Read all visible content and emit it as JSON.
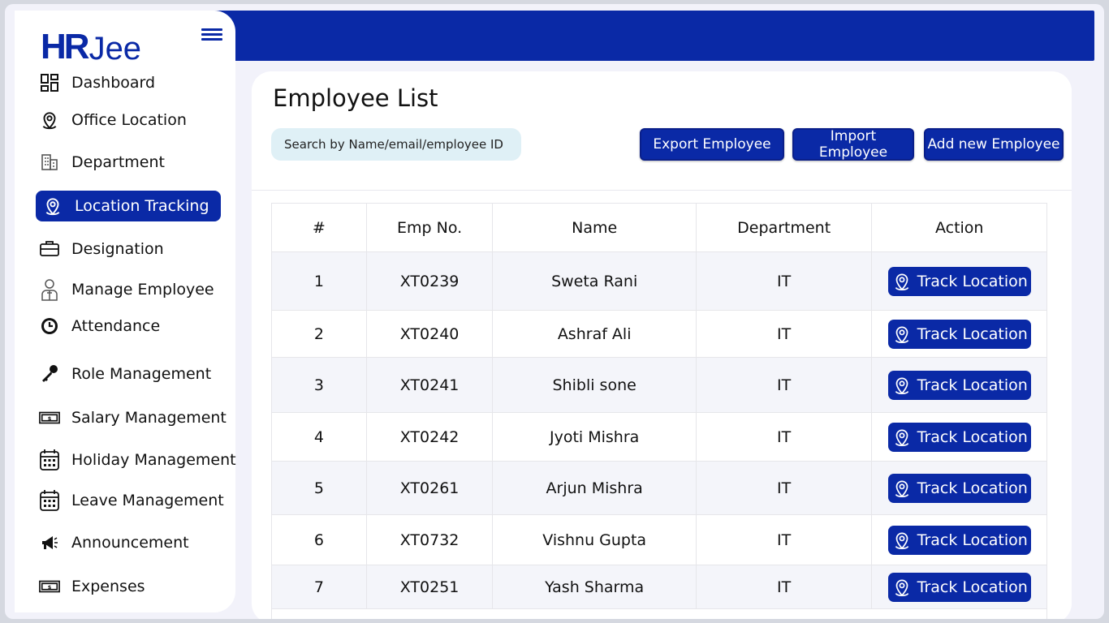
{
  "brand": {
    "logo_part1": "HR",
    "logo_part2": "Jee"
  },
  "sidebar": {
    "items": [
      {
        "label": "Dashboard",
        "icon": "dashboard-grid-icon"
      },
      {
        "label": "Office Location",
        "icon": "location-pin-icon"
      },
      {
        "label": "Department",
        "icon": "building-icon"
      },
      {
        "label": "Location Tracking",
        "icon": "location-pin-icon",
        "active": true
      },
      {
        "label": "Designation",
        "icon": "briefcase-icon"
      },
      {
        "label": "Manage Employee",
        "icon": "employee-icon"
      },
      {
        "label": "Attendance",
        "icon": "clock-icon"
      },
      {
        "label": "Role Management",
        "icon": "key-icon"
      },
      {
        "label": "Salary Management",
        "icon": "money-icon"
      },
      {
        "label": "Holiday Management",
        "icon": "calendar-icon"
      },
      {
        "label": "Leave Management",
        "icon": "calendar-icon"
      },
      {
        "label": "Announcement",
        "icon": "megaphone-icon"
      },
      {
        "label": "Expenses",
        "icon": "money-icon"
      }
    ]
  },
  "main": {
    "title": "Employee List",
    "search_placeholder": "Search by Name/email/employee ID",
    "buttons": {
      "export": "Export Employee",
      "import": "Import Employee",
      "add": "Add new Employee"
    },
    "table": {
      "headers": [
        "#",
        "Emp No.",
        "Name",
        "Department",
        "Action"
      ],
      "action_label": "Track Location",
      "rows": [
        {
          "num": "1",
          "emp_no": "XT0239",
          "name": "Sweta Rani",
          "department": "IT"
        },
        {
          "num": "2",
          "emp_no": "XT0240",
          "name": "Ashraf Ali",
          "department": "IT"
        },
        {
          "num": "3",
          "emp_no": "XT0241",
          "name": "Shibli sone",
          "department": "IT"
        },
        {
          "num": "4",
          "emp_no": "XT0242",
          "name": "Jyoti Mishra",
          "department": "IT"
        },
        {
          "num": "5",
          "emp_no": "XT0261",
          "name": "Arjun Mishra",
          "department": "IT"
        },
        {
          "num": "6",
          "emp_no": "XT0732",
          "name": "Vishnu Gupta",
          "department": "IT"
        },
        {
          "num": "7",
          "emp_no": "XT0251",
          "name": "Yash Sharma",
          "department": "IT"
        }
      ]
    }
  },
  "colors": {
    "primary": "#0a29a6",
    "search_bg": "#dff0f6",
    "page_bg": "#f2f2fa"
  }
}
